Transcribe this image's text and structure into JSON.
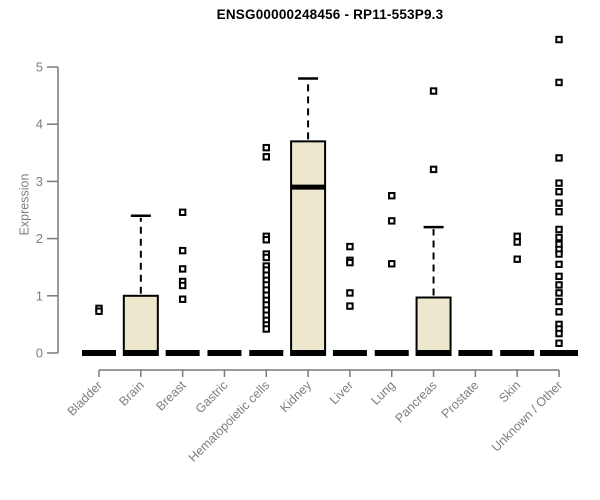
{
  "chart_data": {
    "type": "boxplot",
    "title": "ENSG00000248456 - RP11-553P9.3",
    "ylabel": "Expression",
    "xlabel": "",
    "ylim": [
      0,
      5.5
    ],
    "yticks": [
      0,
      1,
      2,
      3,
      4,
      5
    ],
    "grid": false,
    "legend": "none",
    "categories": [
      "Bladder",
      "Brain",
      "Breast",
      "Gastric",
      "Hematopoietic cells",
      "Kidney",
      "Liver",
      "Lung",
      "Pancreas",
      "Prostate",
      "Skin",
      "Unknown / Other"
    ],
    "boxes": [
      {
        "category": "Bladder",
        "q1": 0,
        "median": 0,
        "q3": 0,
        "whisker_high": 0,
        "outliers": [
          0.78,
          0.73
        ]
      },
      {
        "category": "Brain",
        "q1": 0,
        "median": 0,
        "q3": 1.0,
        "whisker_high": 2.4,
        "outliers": []
      },
      {
        "category": "Breast",
        "q1": 0,
        "median": 0,
        "q3": 0,
        "whisker_high": 0,
        "outliers": [
          2.46,
          1.79,
          1.47,
          1.25,
          1.18,
          0.94
        ]
      },
      {
        "category": "Gastric",
        "q1": 0,
        "median": 0,
        "q3": 0,
        "whisker_high": 0,
        "outliers": []
      },
      {
        "category": "Hematopoietic cells",
        "q1": 0,
        "median": 0,
        "q3": 0,
        "whisker_high": 0,
        "outliers": [
          3.59,
          3.43,
          2.04,
          1.98,
          1.73,
          1.67,
          1.52,
          1.45,
          1.36,
          1.27,
          1.19,
          1.1,
          1.01,
          0.92,
          0.84,
          0.75,
          0.66,
          0.57,
          0.49,
          0.42
        ]
      },
      {
        "category": "Kidney",
        "q1": 0,
        "median": 2.9,
        "q3": 3.7,
        "whisker_high": 4.8,
        "outliers": []
      },
      {
        "category": "Liver",
        "q1": 0,
        "median": 0,
        "q3": 0,
        "whisker_high": 0,
        "outliers": [
          1.86,
          1.62,
          1.58,
          1.05,
          0.82
        ]
      },
      {
        "category": "Lung",
        "q1": 0,
        "median": 0,
        "q3": 0,
        "whisker_high": 0,
        "outliers": [
          2.75,
          2.31,
          1.56
        ]
      },
      {
        "category": "Pancreas",
        "q1": 0,
        "median": 0,
        "q3": 0.97,
        "whisker_high": 2.2,
        "outliers": [
          4.58,
          3.21
        ]
      },
      {
        "category": "Prostate",
        "q1": 0,
        "median": 0,
        "q3": 0,
        "whisker_high": 0,
        "outliers": []
      },
      {
        "category": "Skin",
        "q1": 0,
        "median": 0,
        "q3": 0,
        "whisker_high": 0,
        "outliers": [
          2.04,
          1.94,
          1.64
        ]
      },
      {
        "category": "Unknown / Other",
        "q1": 0,
        "median": 0,
        "q3": 0,
        "whisker_high": 0,
        "outliers": [
          5.48,
          4.73,
          3.41,
          2.97,
          2.82,
          2.62,
          2.47,
          2.16,
          2.02,
          1.9,
          1.81,
          1.73,
          1.55,
          1.34,
          1.19,
          1.05,
          0.9,
          0.72,
          0.5,
          0.42,
          0.34,
          0.17
        ]
      }
    ],
    "colors": {
      "box_fill": "#EDE8CD",
      "box_border": "#000000",
      "median": "#000000",
      "outlier": "#000000",
      "axis": "#7A7A7A",
      "label": "#7E7E7E",
      "title": "#000000",
      "background": "#FFFFFF"
    }
  }
}
